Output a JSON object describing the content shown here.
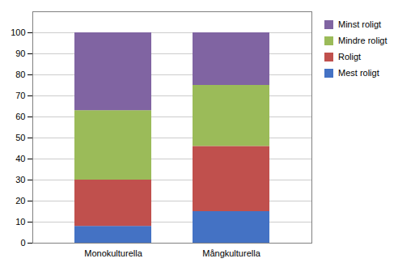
{
  "chart_data": {
    "type": "bar",
    "stacked": true,
    "categories": [
      "Monokulturella",
      "Mångkulturella"
    ],
    "series": [
      {
        "name": "Mest roligt",
        "color": "#4472C4",
        "values": [
          8,
          15
        ]
      },
      {
        "name": "Roligt",
        "color": "#C0504D",
        "values": [
          22,
          31
        ]
      },
      {
        "name": "Mindre roligt",
        "color": "#9BBB59",
        "values": [
          33,
          29
        ]
      },
      {
        "name": "Minst roligt",
        "color": "#8064A2",
        "values": [
          37,
          25
        ]
      }
    ],
    "ylim": [
      0,
      110
    ],
    "yticks": [
      0,
      10,
      20,
      30,
      40,
      50,
      60,
      70,
      80,
      90,
      100
    ],
    "grid": true,
    "legend": "upper right"
  }
}
